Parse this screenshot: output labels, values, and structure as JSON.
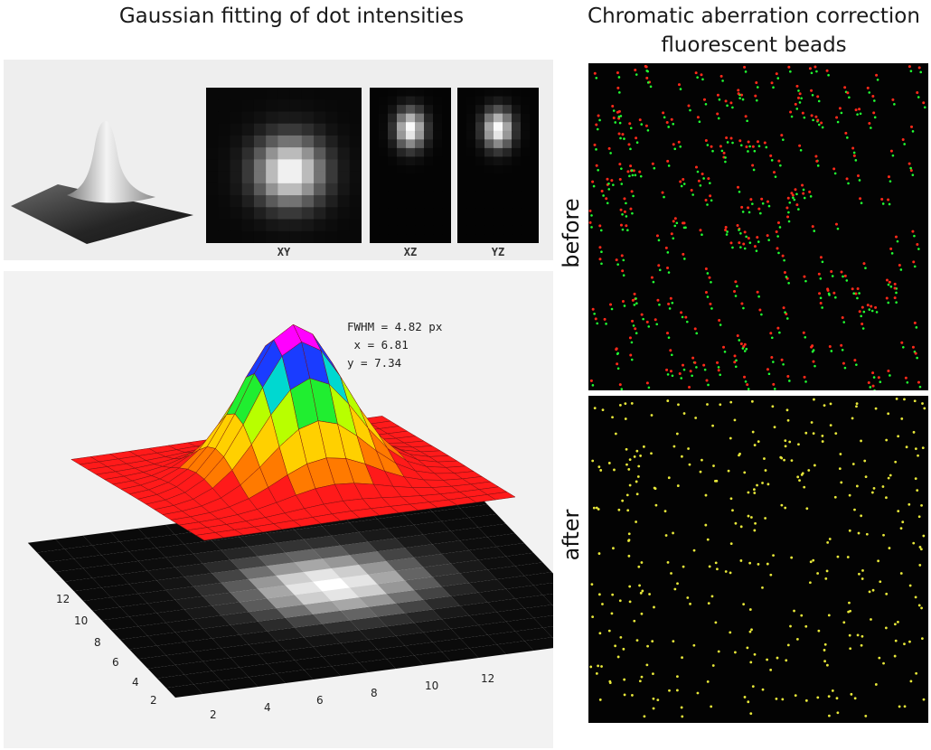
{
  "titles": {
    "left": "Gaussian fitting of dot intensities",
    "right_line1": "Chromatic aberration correction",
    "right_line2": "fluorescent beads"
  },
  "projections": {
    "xy": "XY",
    "xz": "XZ",
    "yz": "YZ"
  },
  "fit": {
    "fwhm": "FWHM = 4.82 px",
    "x": " x = 6.81",
    "y": "y = 7.34"
  },
  "axes": {
    "left_ticks": [
      "12",
      "10",
      "8",
      "6",
      "4",
      "2"
    ],
    "front_ticks": [
      "2",
      "4",
      "6",
      "8",
      "10",
      "12"
    ]
  },
  "beads": {
    "before_label": "before",
    "after_label": "after"
  },
  "colors": {
    "bead_red": "#ff2a1a",
    "bead_green": "#22ff33",
    "bead_yellow": "#e8e83a",
    "surface_base": "#ff1a1a"
  }
}
